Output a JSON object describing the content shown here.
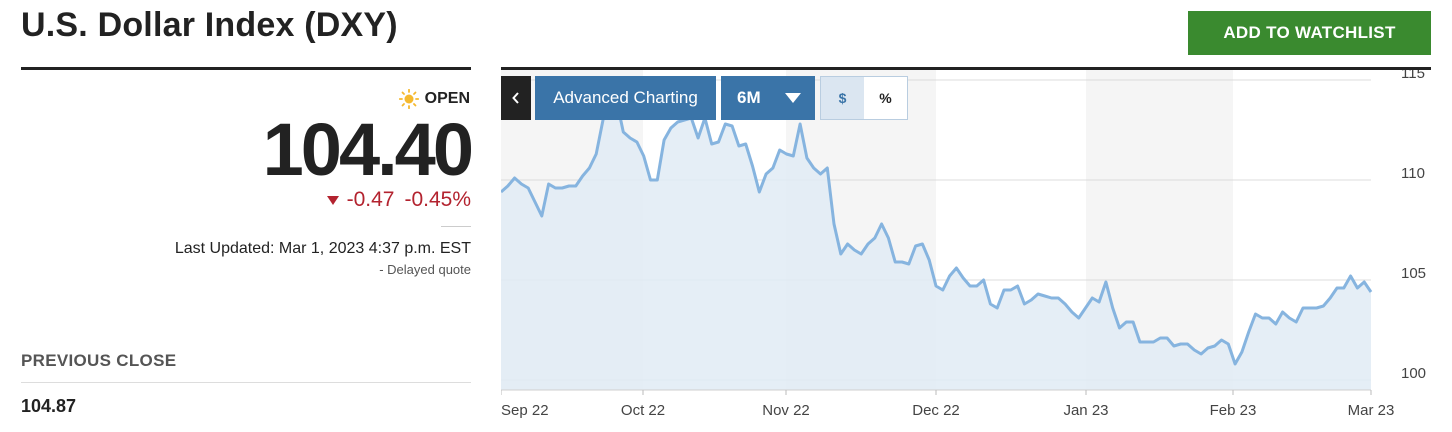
{
  "header": {
    "title": "U.S. Dollar Index (DXY)",
    "watchlist_label": "ADD TO WATCHLIST",
    "watchlist_color": "#3a8a2f"
  },
  "quote": {
    "status_icon": "sun-icon",
    "status": "OPEN",
    "price": "104.40",
    "change": "-0.47",
    "change_percent": "-0.45%",
    "change_icon": "down-triangle-icon",
    "change_color": "#b3232f",
    "last_updated": "Last Updated: Mar 1, 2023 4:37 p.m. EST",
    "delayed": "-  Delayed quote",
    "previous_close_label": "PREVIOUS CLOSE",
    "previous_close_value": "104.87"
  },
  "toolbar": {
    "collapse_icon": "chevron-left-icon",
    "advanced_label": "Advanced Charting",
    "range_label": "6M",
    "range_icon": "caret-down-icon",
    "unit_dollar": "$",
    "unit_percent": "%",
    "active_unit": "$",
    "button_color": "#3a74a8"
  },
  "chart_data": {
    "type": "area",
    "title": "",
    "xlabel": "",
    "ylabel": "",
    "x_ticks": [
      "Sep 22",
      "Oct 22",
      "Nov 22",
      "Dec 22",
      "Jan 23",
      "Feb 23",
      "Mar 23"
    ],
    "y_ticks": [
      100,
      105,
      110,
      115
    ],
    "ylim": [
      99.5,
      115.5
    ],
    "grid": true,
    "alternating_month_bands": true,
    "line_color": "#86b4df",
    "fill_color": "#e0ebf4",
    "series": [
      {
        "values": [
          109.4,
          109.7,
          110.1,
          109.8,
          109.6,
          108.9,
          108.2,
          109.8,
          109.6,
          109.6,
          109.7,
          109.7,
          110.2,
          110.6,
          111.3,
          113.0,
          114.0,
          114.0,
          112.4,
          112.1,
          111.9,
          111.2,
          110.0,
          110.0,
          112.0,
          112.6,
          112.9,
          113.0,
          113.1,
          112.1,
          113.1,
          111.8,
          111.9,
          112.8,
          112.7,
          111.7,
          111.8,
          110.7,
          109.4,
          110.3,
          110.6,
          111.5,
          111.3,
          111.2,
          112.8,
          111.1,
          110.6,
          110.3,
          110.6,
          107.8,
          106.3,
          106.8,
          106.5,
          106.3,
          106.8,
          107.1,
          107.8,
          107.1,
          105.9,
          105.9,
          105.8,
          106.7,
          106.8,
          106.0,
          104.7,
          104.5,
          105.2,
          105.6,
          105.1,
          104.7,
          104.7,
          105.0,
          103.8,
          103.6,
          104.5,
          104.5,
          104.7,
          103.8,
          104.0,
          104.3,
          104.2,
          104.1,
          104.1,
          103.8,
          103.4,
          103.1,
          103.6,
          104.1,
          103.9,
          104.9,
          103.6,
          102.6,
          102.9,
          102.9,
          101.9,
          101.9,
          101.9,
          102.1,
          102.1,
          101.7,
          101.8,
          101.8,
          101.5,
          101.3,
          101.6,
          101.7,
          102.0,
          101.8,
          100.8,
          101.4,
          102.4,
          103.3,
          103.1,
          103.1,
          102.8,
          103.4,
          103.1,
          102.9,
          103.6,
          103.6,
          103.6,
          103.7,
          104.1,
          104.6,
          104.6,
          105.2,
          104.6,
          104.9,
          104.4
        ]
      }
    ]
  }
}
